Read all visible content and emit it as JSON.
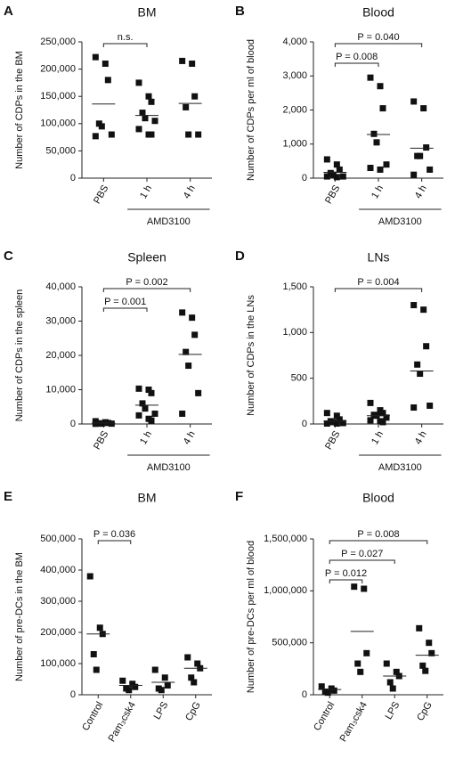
{
  "chart_data": [
    {
      "type": "scatter",
      "panel": "A",
      "title": "BM",
      "y_label": "Number of CDPs in the BM",
      "categories": [
        "PBS",
        "1 h",
        "4 h"
      ],
      "points": [
        [
          222000,
          210000,
          180000,
          100000,
          95000,
          80000,
          77000
        ],
        [
          175000,
          150000,
          140000,
          120000,
          110000,
          105000,
          90000,
          80000,
          80000
        ],
        [
          215000,
          210000,
          150000,
          130000,
          80000,
          80000
        ]
      ],
      "means": [
        136000,
        115000,
        137000
      ],
      "ylim": [
        0,
        250000
      ],
      "yticks": [
        0,
        {
          "value": 50000,
          "label": "50,000"
        },
        {
          "value": 100000,
          "label": "100,000"
        },
        {
          "value": 150000,
          "label": "150,000"
        },
        {
          "value": 200000,
          "label": "200,000"
        },
        {
          "value": 250000,
          "label": "250,000"
        }
      ],
      "comparisons": [
        {
          "from": 0,
          "to": 1,
          "label": "n.s."
        }
      ],
      "category_group": {
        "label": "AMD3100",
        "from": 1,
        "to": 2
      }
    },
    {
      "type": "scatter",
      "panel": "B",
      "title": "Blood",
      "y_label": "Number of CDPs per ml of blood",
      "categories": [
        "PBS",
        "1 h",
        "4 h"
      ],
      "points": [
        [
          550,
          400,
          250,
          150,
          100,
          50,
          50,
          30
        ],
        [
          2950,
          2700,
          2050,
          1300,
          1050,
          400,
          300,
          250
        ],
        [
          2250,
          2050,
          900,
          650,
          650,
          250,
          100
        ]
      ],
      "means": [
        170,
        1280,
        880
      ],
      "ylim": [
        0,
        4000
      ],
      "yticks": [
        0,
        {
          "value": 1000,
          "label": "1,000"
        },
        {
          "value": 2000,
          "label": "2,000"
        },
        {
          "value": 3000,
          "label": "3,000"
        },
        {
          "value": 4000,
          "label": "4,000"
        }
      ],
      "comparisons": [
        {
          "from": 0,
          "to": 1,
          "label": "P = 0.008"
        },
        {
          "from": 0,
          "to": 2,
          "label": "P = 0.040"
        }
      ],
      "category_group": {
        "label": "AMD3100",
        "from": 1,
        "to": 2
      }
    },
    {
      "type": "scatter",
      "panel": "C",
      "title": "Spleen",
      "y_label": "Number of CDPs in the spleen",
      "categories": [
        "PBS",
        "1 h",
        "4 h"
      ],
      "points": [
        [
          800,
          500,
          300,
          200,
          100,
          100,
          50
        ],
        [
          10300,
          10000,
          9000,
          6000,
          4500,
          3000,
          2500,
          1500,
          1000
        ],
        [
          32500,
          31000,
          26000,
          21000,
          17000,
          9000,
          3000
        ]
      ],
      "means": [
        300,
        5500,
        20300
      ],
      "ylim": [
        0,
        40000
      ],
      "yticks": [
        0,
        {
          "value": 10000,
          "label": "10,000"
        },
        {
          "value": 20000,
          "label": "20,000"
        },
        {
          "value": 30000,
          "label": "30,000"
        },
        {
          "value": 40000,
          "label": "40,000"
        }
      ],
      "comparisons": [
        {
          "from": 0,
          "to": 1,
          "label": "P = 0.001"
        },
        {
          "from": 0,
          "to": 2,
          "label": "P = 0.002"
        }
      ],
      "category_group": {
        "label": "AMD3100",
        "from": 1,
        "to": 2
      }
    },
    {
      "type": "scatter",
      "panel": "D",
      "title": "LNs",
      "y_label": "Number of CDPs in the LNs",
      "categories": [
        "PBS",
        "1 h",
        "4 h"
      ],
      "points": [
        [
          120,
          90,
          50,
          30,
          20,
          10,
          5,
          5
        ],
        [
          230,
          150,
          120,
          100,
          90,
          70,
          40,
          30,
          20
        ],
        [
          1300,
          1250,
          850,
          650,
          550,
          200,
          180
        ]
      ],
      "means": [
        30,
        90,
        580
      ],
      "ylim": [
        0,
        1500
      ],
      "yticks": [
        0,
        500,
        {
          "value": 1000,
          "label": "1,000"
        },
        {
          "value": 1500,
          "label": "1,500"
        }
      ],
      "comparisons": [
        {
          "from": 0,
          "to": 2,
          "label": "P = 0.004"
        }
      ],
      "category_group": {
        "label": "AMD3100",
        "from": 1,
        "to": 2
      }
    },
    {
      "type": "scatter",
      "panel": "E",
      "title": "BM",
      "y_label": "Number of pre-DCs in the BM",
      "categories": [
        "Control",
        "Pam₃csk4",
        "LPS",
        "CpG"
      ],
      "points": [
        [
          380000,
          215000,
          195000,
          130000,
          80000
        ],
        [
          45000,
          35000,
          25000,
          20000,
          15000
        ],
        [
          80000,
          55000,
          30000,
          20000,
          15000
        ],
        [
          120000,
          100000,
          85000,
          55000,
          40000
        ]
      ],
      "means": [
        195000,
        30000,
        40000,
        85000
      ],
      "ylim": [
        0,
        500000
      ],
      "yticks": [
        0,
        {
          "value": 100000,
          "label": "100,000"
        },
        {
          "value": 200000,
          "label": "200,000"
        },
        {
          "value": 300000,
          "label": "300,000"
        },
        {
          "value": 400000,
          "label": "400,000"
        },
        {
          "value": 500000,
          "label": "500,000"
        }
      ],
      "comparisons": [
        {
          "from": 0,
          "to": 1,
          "label": "P = 0.036"
        }
      ]
    },
    {
      "type": "scatter",
      "panel": "F",
      "title": "Blood",
      "y_label": "Number of pre-DCs per ml of blood",
      "categories": [
        "Control",
        "Pam₃csk4",
        "LPS",
        "CpG"
      ],
      "points": [
        [
          80000,
          60000,
          40000,
          30000,
          20000
        ],
        [
          1040000,
          1020000,
          400000,
          300000,
          220000
        ],
        [
          300000,
          220000,
          180000,
          120000,
          60000
        ],
        [
          640000,
          500000,
          400000,
          280000,
          230000
        ]
      ],
      "means": [
        50000,
        610000,
        180000,
        380000
      ],
      "ylim": [
        0,
        1500000
      ],
      "yticks": [
        0,
        {
          "value": 500000,
          "label": "500,000"
        },
        {
          "value": 1000000,
          "label": "1,000,000"
        },
        {
          "value": 1500000,
          "label": "1,500,000"
        }
      ],
      "comparisons": [
        {
          "from": 0,
          "to": 1,
          "label": "P = 0.012"
        },
        {
          "from": 0,
          "to": 2,
          "label": "P = 0.027"
        },
        {
          "from": 0,
          "to": 3,
          "label": "P = 0.008"
        }
      ]
    }
  ]
}
